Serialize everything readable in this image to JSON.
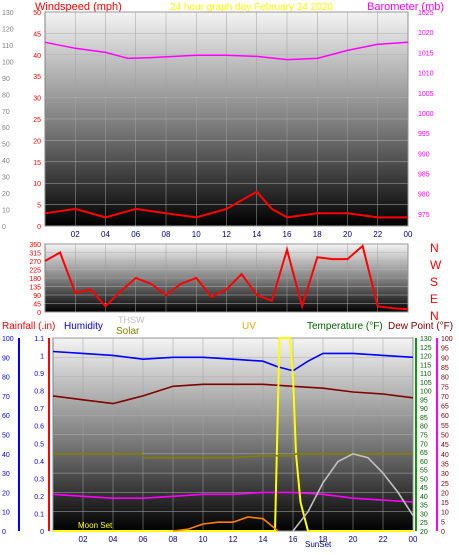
{
  "chart_data": [
    {
      "type": "line",
      "panel": "wind-barometer",
      "title": "24 hour graph day   February 24 2020",
      "left_axis_label": "Windspeed (mph)",
      "right_axis_label": "Barometer (mb)",
      "x_ticks": [
        "02",
        "04",
        "06",
        "08",
        "10",
        "12",
        "14",
        "16",
        "18",
        "20",
        "22",
        "00"
      ],
      "left_ticks": [
        0,
        5,
        10,
        15,
        20,
        25,
        30,
        35,
        40,
        45,
        50
      ],
      "left_outer_ticks": [
        0,
        10,
        20,
        30,
        40,
        50,
        60,
        70,
        80,
        90,
        100,
        110,
        120,
        130
      ],
      "right_ticks": [
        975,
        980,
        985,
        990,
        995,
        1000,
        1005,
        1010,
        1015,
        1020,
        1025
      ],
      "ylim_left": [
        0,
        50
      ],
      "ylim_right": [
        972,
        1025
      ],
      "series": [
        {
          "name": "Barometer",
          "axis": "right",
          "color": "#ff00ff",
          "x": [
            0,
            2,
            4,
            5.5,
            7,
            10,
            12,
            14,
            16,
            18,
            20,
            22,
            24
          ],
          "values": [
            1017.5,
            1016.0,
            1015.0,
            1013.5,
            1013.7,
            1014.3,
            1014.3,
            1014.0,
            1013.2,
            1013.5,
            1015.5,
            1017.0,
            1017.5
          ]
        },
        {
          "name": "Windspeed",
          "axis": "left",
          "color": "#ff0000",
          "x": [
            0,
            2,
            4,
            6,
            8,
            10,
            12,
            13,
            14,
            15,
            16,
            18,
            20,
            22,
            24
          ],
          "values": [
            3,
            4,
            2,
            4,
            3,
            2,
            4,
            6,
            8,
            4,
            2,
            3,
            3,
            2,
            2
          ]
        }
      ]
    },
    {
      "type": "line",
      "panel": "wind-direction",
      "y_ticks": [
        0,
        45,
        90,
        135,
        180,
        225,
        270,
        315,
        360
      ],
      "direction_labels": [
        "N",
        "W",
        "S",
        "E",
        "N"
      ],
      "ylim": [
        0,
        360
      ],
      "series": [
        {
          "name": "Wind Direction",
          "color": "#ff0000",
          "x": [
            0,
            1,
            2,
            3,
            4,
            5,
            6,
            7,
            8,
            9,
            10,
            11,
            12,
            13,
            14,
            15,
            16,
            17,
            18,
            19,
            20,
            21,
            22,
            23,
            24
          ],
          "values": [
            270,
            315,
            100,
            120,
            30,
            110,
            180,
            150,
            90,
            150,
            180,
            80,
            120,
            200,
            90,
            60,
            330,
            30,
            290,
            280,
            280,
            350,
            30,
            20,
            15
          ]
        }
      ]
    },
    {
      "type": "line",
      "panel": "rain-temperature-solar",
      "axis_labels": [
        "Rainfall (.in)",
        "Humidity",
        "THSW",
        "Solar",
        "UV",
        "Temperature (°F)",
        "Dew Point (°F)"
      ],
      "rain_ticks": [
        0,
        0.1,
        0.2,
        0.3,
        0.4,
        0.5,
        0.6,
        0.7,
        0.8,
        0.9,
        1,
        1.1
      ],
      "pct_ticks": [
        0,
        10,
        20,
        30,
        40,
        50,
        60,
        70,
        80,
        90,
        100
      ],
      "temp_ticks": [
        20,
        25,
        30,
        35,
        40,
        45,
        50,
        55,
        60,
        65,
        70,
        75,
        80,
        85,
        90,
        95,
        100,
        105,
        110,
        115,
        120,
        125,
        130
      ],
      "uv_ticks": [
        0,
        5,
        10,
        15,
        20,
        25,
        30,
        35,
        40,
        45,
        50,
        55,
        60,
        65,
        70,
        75,
        80,
        85,
        90,
        95,
        100
      ],
      "x_ticks": [
        "02",
        "04",
        "06",
        "08",
        "10",
        "12",
        "14",
        "16",
        "18",
        "20",
        "22",
        "00"
      ],
      "annotations": [
        "Moon Set",
        "SunSet"
      ],
      "ylim": [
        0,
        100
      ],
      "series": [
        {
          "name": "Humidity",
          "color": "#0000ff",
          "x": [
            0,
            2,
            4,
            6,
            8,
            10,
            12,
            14,
            15,
            16,
            17,
            18,
            20,
            22,
            24
          ],
          "values": [
            93,
            92,
            91,
            89,
            90,
            90,
            89,
            88,
            85,
            83,
            88,
            92,
            92,
            91,
            90
          ]
        },
        {
          "name": "Temperature",
          "color": "#800000",
          "x": [
            0,
            2,
            4,
            6,
            8,
            10,
            12,
            14,
            16,
            18,
            20,
            22,
            24
          ],
          "values": [
            70,
            68,
            66,
            70,
            75,
            76,
            76,
            76,
            75,
            74,
            72,
            71,
            69
          ]
        },
        {
          "name": "Dew Point",
          "color": "#ff00ff",
          "x": [
            0,
            2,
            4,
            6,
            8,
            10,
            12,
            14,
            16,
            18,
            20,
            22,
            24
          ],
          "values": [
            19,
            18,
            17,
            17,
            18,
            19,
            19,
            20,
            20,
            19,
            17,
            16,
            15
          ]
        },
        {
          "name": "UV",
          "color": "#ffff00",
          "x": [
            0,
            14.8,
            15.1,
            15.8,
            16.0,
            16.2,
            16.5,
            17,
            24
          ],
          "values": [
            0,
            0,
            100,
            100,
            80,
            40,
            15,
            0,
            0
          ]
        },
        {
          "name": "Solar",
          "color": "#808000",
          "x": [
            0,
            2,
            4,
            5.9,
            6.1,
            8,
            10,
            12,
            14,
            16,
            16.2,
            18,
            20,
            22,
            24
          ],
          "values": [
            40,
            40,
            40,
            40,
            38,
            38,
            38,
            38,
            39,
            39,
            40,
            40,
            40,
            40,
            40
          ]
        },
        {
          "name": "THSW",
          "color": "#c0c0c0",
          "x": [
            16,
            17,
            18,
            19,
            20,
            21,
            22,
            23,
            24
          ],
          "values": [
            0,
            10,
            25,
            36,
            40,
            38,
            30,
            20,
            8
          ]
        },
        {
          "name": "Rainfall",
          "color": "#ff8000",
          "x": [
            8,
            9,
            10,
            11,
            12,
            13,
            14,
            15
          ],
          "values": [
            0,
            0.01,
            0.04,
            0.05,
            0.05,
            0.08,
            0.07,
            0
          ]
        }
      ]
    }
  ]
}
